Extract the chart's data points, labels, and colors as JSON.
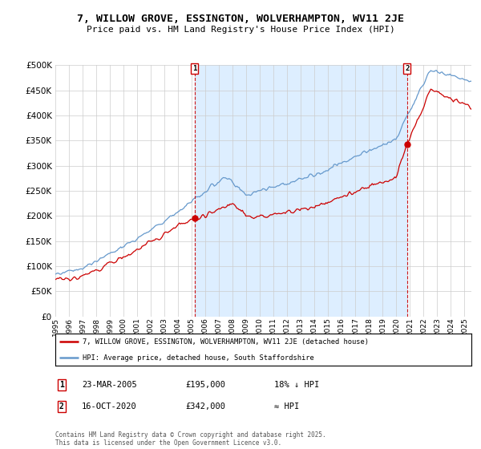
{
  "title": "7, WILLOW GROVE, ESSINGTON, WOLVERHAMPTON, WV11 2JE",
  "subtitle": "Price paid vs. HM Land Registry's House Price Index (HPI)",
  "ylim": [
    0,
    500000
  ],
  "yticks": [
    0,
    50000,
    100000,
    150000,
    200000,
    250000,
    300000,
    350000,
    400000,
    450000,
    500000
  ],
  "xlim_start": 1995.0,
  "xlim_end": 2025.5,
  "sale1_date": 2005.22,
  "sale1_price": 195000,
  "sale1_label": "23-MAR-2005",
  "sale1_text": "£195,000",
  "sale1_note": "18% ↓ HPI",
  "sale2_date": 2020.79,
  "sale2_price": 342000,
  "sale2_label": "16-OCT-2020",
  "sale2_text": "£342,000",
  "sale2_note": "≈ HPI",
  "legend_line1": "7, WILLOW GROVE, ESSINGTON, WOLVERHAMPTON, WV11 2JE (detached house)",
  "legend_line2": "HPI: Average price, detached house, South Staffordshire",
  "footer": "Contains HM Land Registry data © Crown copyright and database right 2025.\nThis data is licensed under the Open Government Licence v3.0.",
  "red_color": "#cc0000",
  "blue_color": "#6699cc",
  "fill_color": "#ddeeff",
  "bg_color": "#ffffff",
  "grid_color": "#cccccc"
}
